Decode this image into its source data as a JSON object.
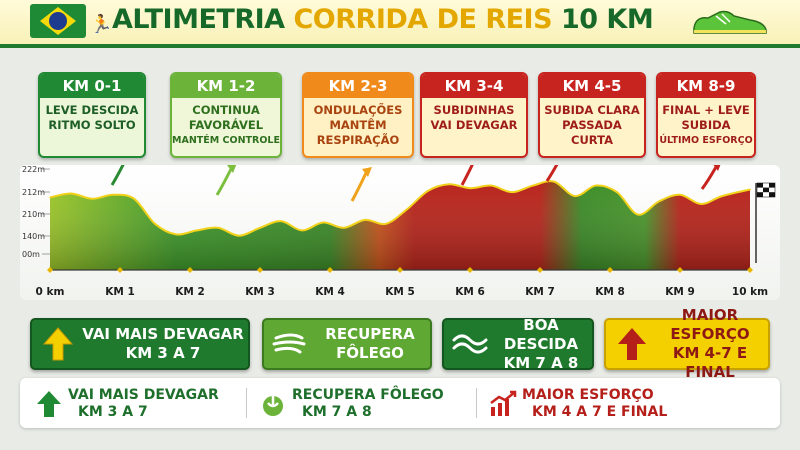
{
  "header": {
    "title_part1": "ALTIMETRIA ",
    "title_part2": "CORRIDA DE REIS",
    "title_part3": " 10 KM"
  },
  "colors": {
    "green": "#1f8a33",
    "lightgreen": "#6cb33a",
    "orange": "#f08a1a",
    "red": "#c8241f",
    "yellow": "#f5d000"
  },
  "callouts": [
    {
      "header": "KM 0-1",
      "lines": [
        "LEVE DESCIDA",
        "RITMO SOLTO"
      ],
      "small": "",
      "theme": "green"
    },
    {
      "header": "KM 1-2",
      "lines": [
        "CONTINUA",
        "FAVORÁVEL"
      ],
      "small": "MANTÉM CONTROLE",
      "theme": "lightgreen"
    },
    {
      "header": "KM 2-3",
      "lines": [
        "ONDULAÇÕES",
        "MANTÊM",
        "RESPIRAÇÃO"
      ],
      "small": "",
      "theme": "orange"
    },
    {
      "header": "KM 3-4",
      "lines": [
        "SUBIDINHAS",
        "VAI DEVAGAR"
      ],
      "small": "",
      "theme": "red"
    },
    {
      "header": "KM 4-5",
      "lines": [
        "SUBIDA CLARA",
        "PASSADA CURTA"
      ],
      "small": "",
      "theme": "red"
    },
    {
      "header": "KM 8-9",
      "lines": [
        "FINAL + LEVE",
        "SUBIDA"
      ],
      "small": "ÚLTIMO ESFORÇO",
      "theme": "red"
    }
  ],
  "chart_data": {
    "type": "area",
    "x": [
      0,
      0.3,
      0.6,
      0.9,
      1.2,
      1.5,
      1.8,
      2.1,
      2.4,
      2.7,
      3.0,
      3.3,
      3.6,
      3.9,
      4.2,
      4.5,
      4.8,
      5.1,
      5.4,
      5.7,
      6.0,
      6.3,
      6.6,
      6.9,
      7.2,
      7.5,
      7.8,
      8.1,
      8.4,
      8.7,
      9.0,
      9.3,
      9.6,
      10.0
    ],
    "y": [
      205,
      208,
      204,
      207,
      204,
      185,
      177,
      180,
      182,
      176,
      182,
      187,
      180,
      186,
      182,
      188,
      185,
      196,
      210,
      215,
      212,
      214,
      209,
      214,
      217,
      206,
      214,
      209,
      192,
      202,
      207,
      200,
      206,
      211
    ],
    "x_tick_labels": [
      "0 km",
      "KM 1",
      "KM 2",
      "KM 3",
      "KM 4",
      "KM 5",
      "KM 6",
      "KM 7",
      "KM 8",
      "KM 9",
      "10 km"
    ],
    "x_ticks": [
      0,
      1,
      2,
      3,
      4,
      5,
      6,
      7,
      8,
      9,
      10
    ],
    "y_tick_labels": [
      "222m",
      "212m",
      "210m",
      "140m",
      "00m"
    ],
    "xlim": [
      0,
      10
    ],
    "ylim": [
      150,
      222
    ],
    "grid": false
  },
  "pills": [
    {
      "line1": "VAI MAIS DEVAGAR",
      "line2": "KM 3 A 7",
      "theme": "green",
      "icon": "up-arrow-icon"
    },
    {
      "line1": "RECUPERA",
      "line2": "FÔLEGO",
      "theme": "lightgreen",
      "icon": "wind-icon"
    },
    {
      "line1": "BOA DESCIDA",
      "line2": "KM 7 A 8",
      "theme": "green",
      "icon": "wave-icon"
    },
    {
      "line1": "MAIOR ESFORÇO",
      "line2": "KM 4-7 E FINAL",
      "theme": "yellow",
      "icon": "up-arrow-red-icon"
    }
  ],
  "bottom": [
    {
      "line1": "VAI MAIS DEVAGAR",
      "line2": "KM 3 A 7",
      "color": "#1f6f2c",
      "icon": "up-arrow-icon"
    },
    {
      "line1": "RECUPERA FÔLEGO",
      "line2": "KM 7 A 8",
      "color": "#1f6f2c",
      "icon": "lungs-icon"
    },
    {
      "line1": "MAIOR ESFORÇO",
      "line2": "KM 4 A 7 E FINAL",
      "color": "#b51f1a",
      "icon": "chart-up-icon"
    }
  ]
}
